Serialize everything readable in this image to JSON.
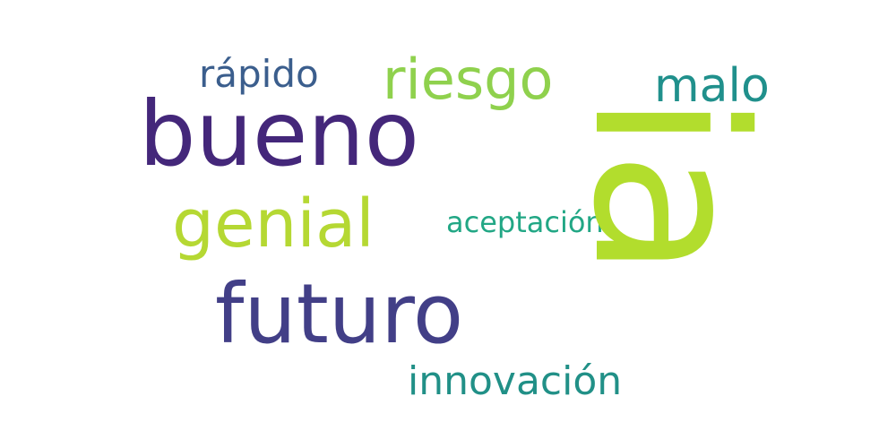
{
  "words": [
    {
      "text": "bueno",
      "color": "#44277a"
    },
    {
      "text": "futuro",
      "color": "#423f87"
    },
    {
      "text": "genial",
      "color": "#b5d833"
    },
    {
      "text": "riesgo",
      "color": "#8fd14d"
    },
    {
      "text": "rápido",
      "color": "#3b5e8d"
    },
    {
      "text": "malo",
      "color": "#20908c"
    },
    {
      "text": "aceptación",
      "color": "#22a785"
    },
    {
      "text": "innovación",
      "color": "#219087"
    },
    {
      "text": "ia",
      "color": "#b2dd2d",
      "orientation": "vertical"
    }
  ]
}
